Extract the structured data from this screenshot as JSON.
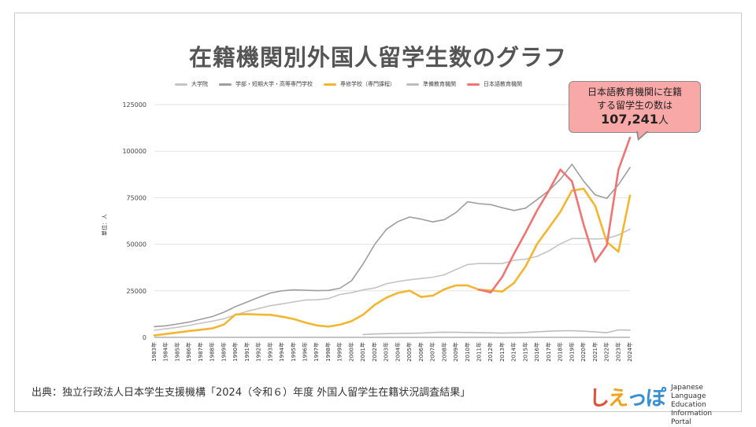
{
  "title": "在籍機関別外国人留学生数のグラフ",
  "callout": {
    "line1": "日本語教育機関に在籍",
    "line2": "する留学生の数は",
    "value": "107,241",
    "unit": "人"
  },
  "source": "出典：独立行政法人日本学生支援機構「2024（令和６）年度 外国人留学生在籍状況調査結果」",
  "logo": {
    "mark": "しえっぽ",
    "text_lines": [
      "Japanese Language",
      "Education Information",
      "Portal"
    ]
  },
  "chart_data": {
    "type": "line",
    "title": "在籍機関別外国人留学生数のグラフ",
    "ylabel": "単位：人",
    "xlabel": "",
    "ylim": [
      0,
      125000
    ],
    "yticks": [
      "0",
      "25000",
      "50000",
      "75000",
      "100000",
      "125000"
    ],
    "ytick_values": [
      0,
      25000,
      50000,
      75000,
      100000,
      125000
    ],
    "grid": true,
    "legend_position": "top",
    "x": [
      "1983年",
      "1984年",
      "1985年",
      "1986年",
      "1987年",
      "1988年",
      "1989年",
      "1990年",
      "1991年",
      "1992年",
      "1993年",
      "1994年",
      "1995年",
      "1996年",
      "1997年",
      "1998年",
      "1999年",
      "2000年",
      "2001年",
      "2002年",
      "2003年",
      "2004年",
      "2005年",
      "2006年",
      "2007年",
      "2008年",
      "2009年",
      "2010年",
      "2011年",
      "2012年",
      "2013年",
      "2014年",
      "2015年",
      "2016年",
      "2017年",
      "2018年",
      "2019年",
      "2020年",
      "2021年",
      "2022年",
      "2023年",
      "2024年"
    ],
    "series": [
      {
        "name": "大学院",
        "color": "#c4c4c4",
        "values": [
          3800,
          4600,
          5400,
          6400,
          7600,
          8700,
          10000,
          12000,
          14000,
          15500,
          17000,
          18000,
          19000,
          20000,
          20200,
          20800,
          23000,
          24000,
          25500,
          26500,
          28800,
          30000,
          30900,
          31600,
          32300,
          33600,
          36400,
          39100,
          39700,
          39600,
          39600,
          41400,
          42000,
          43500,
          46400,
          50200,
          53100,
          53100,
          52800,
          53100,
          55000,
          58100
        ]
      },
      {
        "name": "学部・短期大学・高等専門学校",
        "color": "#9e9e9e",
        "values": [
          5800,
          6200,
          7200,
          8200,
          9700,
          11200,
          13500,
          16500,
          19000,
          21500,
          23800,
          25000,
          25500,
          25300,
          25100,
          25200,
          26400,
          30400,
          39500,
          50000,
          58000,
          62200,
          64600,
          63500,
          62000,
          63200,
          67000,
          72800,
          71800,
          71300,
          69600,
          68100,
          69400,
          74000,
          78800,
          84900,
          93000,
          83900,
          76500,
          74600,
          82000,
          91200
        ]
      },
      {
        "name": "専修学校（専門課程）",
        "color": "#f2b632",
        "values": [
          1000,
          1800,
          2600,
          3400,
          4100,
          4800,
          6900,
          12300,
          12500,
          12200,
          12100,
          11100,
          9900,
          8000,
          6400,
          5800,
          6800,
          8700,
          12200,
          17500,
          21300,
          23900,
          25100,
          21700,
          22400,
          25800,
          27900,
          27900,
          25500,
          25200,
          24600,
          29200,
          38100,
          50200,
          58800,
          67500,
          78800,
          79800,
          70600,
          51300,
          46000,
          76100
        ]
      },
      {
        "name": "準備教育機関",
        "color": "#bdbdbd",
        "values": [
          null,
          null,
          null,
          null,
          null,
          null,
          null,
          null,
          null,
          null,
          null,
          null,
          null,
          null,
          null,
          null,
          null,
          null,
          1500,
          1800,
          2000,
          2100,
          2200,
          2300,
          2600,
          2800,
          2700,
          2600,
          2500,
          2400,
          2300,
          2400,
          2600,
          3000,
          3300,
          3500,
          3600,
          3300,
          2900,
          2500,
          4000,
          3900
        ]
      },
      {
        "name": "日本語教育機関",
        "color": "#ef7474",
        "values": [
          null,
          null,
          null,
          null,
          null,
          null,
          null,
          null,
          null,
          null,
          null,
          null,
          null,
          null,
          null,
          null,
          null,
          null,
          null,
          null,
          null,
          null,
          null,
          null,
          null,
          null,
          null,
          null,
          25600,
          24100,
          32600,
          44900,
          56300,
          68200,
          78700,
          90100,
          83800,
          60600,
          40600,
          49400,
          90000,
          107241
        ]
      }
    ]
  }
}
